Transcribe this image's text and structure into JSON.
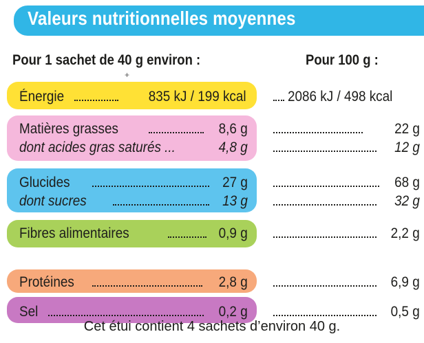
{
  "title": "Valeurs nutritionnelles moyennes",
  "header": {
    "per_sachet": "Pour 1 sachet de 40 g environ :",
    "per_100g": "Pour 100 g :"
  },
  "rows": [
    {
      "label": "Énergie",
      "per_sachet": "835 kJ / 199 kcal",
      "per_100g": "2086 kJ / 498 kcal",
      "color": "#ffe135"
    },
    {
      "label": "Matières grasses",
      "per_sachet": "8,6 g",
      "per_100g": "22 g",
      "color": "#f5b8dc"
    },
    {
      "label": "dont acides gras saturés ...",
      "per_sachet": "4,8 g",
      "per_100g": "12 g",
      "color": "#f5b8dc"
    },
    {
      "label": "Glucides",
      "per_sachet": "27 g",
      "per_100g": "68 g",
      "color": "#5ec4ee"
    },
    {
      "label": "dont sucres",
      "per_sachet": "13 g",
      "per_100g": "32 g",
      "color": "#5ec4ee"
    },
    {
      "label": "Fibres alimentaires",
      "per_sachet": "0,9 g",
      "per_100g": "2,2 g",
      "color": "#a9d15a"
    },
    {
      "label": "Protéines",
      "per_sachet": "2,8 g",
      "per_100g": "6,9 g",
      "color": "#f7a97b"
    },
    {
      "label": "Sel",
      "per_sachet": "0,2 g",
      "per_100g": "0,5 g",
      "color": "#c879c3"
    }
  ],
  "footer": "Cet étui contient 4 sachets d’environ 40 g.",
  "colors": {
    "banner": "#30b6e6"
  }
}
